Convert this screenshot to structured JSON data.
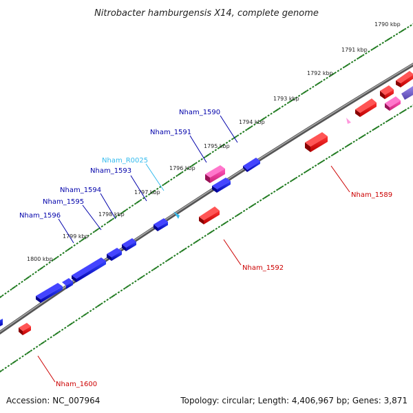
{
  "title": "Nitrobacter hamburgensis X14, complete genome",
  "footer": {
    "accession": "Accession: NC_007964",
    "summary": "Topology: circular; Length: 4,406,967 bp; Genes: 3,871"
  },
  "colors": {
    "backbone": "#777777",
    "ticks": "#1f7a1f",
    "forward_gene": "#0000dd",
    "reverse_gene": "#ee0000",
    "pseudo_gene": "#dd3399",
    "rna": "#33bbee",
    "operon": "#7766cc"
  },
  "scale_labels": [
    "1790 kbp",
    "1791 kbp",
    "1792 kbp",
    "1793 kbp",
    "1794 kbp",
    "1795 kbp",
    "1796 kbp",
    "1797 kbp",
    "1798 kbp",
    "1799 kbp",
    "1800 kbp"
  ],
  "gene_labels": {
    "nham_1590": "Nham_1590",
    "nham_1591": "Nham_1591",
    "nham_r0025": "Nham_R0025",
    "nham_1593": "Nham_1593",
    "nham_1594": "Nham_1594",
    "nham_1595": "Nham_1595",
    "nham_1596": "Nham_1596",
    "nham_1589": "Nham_1589",
    "nham_1592": "Nham_1592",
    "nham_1600": "Nham_1600"
  }
}
